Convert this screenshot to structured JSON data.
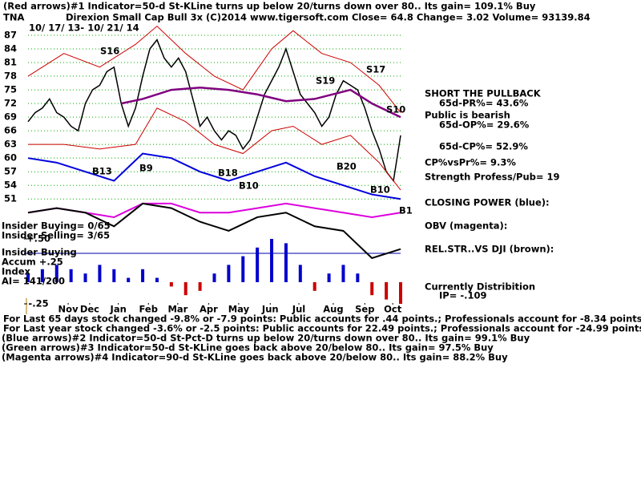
{
  "chart_data": {
    "type": "line",
    "ticker": "TNA",
    "title": "Direxion Small Cap Bull 3x     (C)2014 www.tigersoft.com    Close=  64.8  Change= 3.02 Volume= 93139.84",
    "header": "(Red arrows)#1 Indicator=50-d St-KLine turns up below 20/turns down over 80.. Its gain= 109.1% Buy",
    "date_range": "10/ 17/ 13- 10/ 21/ 14",
    "xlim": [
      0,
      52
    ],
    "xticks": [
      {
        "value": 5.6,
        "label": "Nov"
      },
      {
        "value": 8.6,
        "label": "Dec"
      },
      {
        "value": 12.6,
        "label": "Jan"
      },
      {
        "value": 16.8,
        "label": "Feb"
      },
      {
        "value": 20.9,
        "label": "Mar"
      },
      {
        "value": 25.2,
        "label": "Apr"
      },
      {
        "value": 29.4,
        "label": "May"
      },
      {
        "value": 33.8,
        "label": "Jun"
      },
      {
        "value": 37.8,
        "label": "Jul"
      },
      {
        "value": 42.6,
        "label": "Aug"
      },
      {
        "value": 47,
        "label": "Sep"
      },
      {
        "value": 50.9,
        "label": "Oct"
      }
    ],
    "ylim": [
      38,
      87
    ],
    "yticks": [
      87,
      84,
      81,
      78,
      75,
      72,
      69,
      66,
      63,
      60,
      57,
      54,
      51
    ],
    "y2lim": [
      -0.25,
      0.5
    ],
    "y2ticks": [
      {
        "value": 0.5,
        "label": "+.50"
      },
      {
        "value": -0.25,
        "label": "-.25"
      }
    ],
    "grid": true,
    "series": [
      {
        "name": "Price",
        "color": "#000000",
        "x": [
          0,
          1,
          2,
          3,
          4,
          5,
          6,
          7,
          8,
          9,
          10,
          11,
          12,
          13,
          14,
          15,
          16,
          17,
          18,
          19,
          20,
          21,
          22,
          23,
          24,
          25,
          26,
          27,
          28,
          29,
          30,
          31,
          32,
          33,
          34,
          35,
          36,
          37,
          38,
          39,
          40,
          41,
          42,
          43,
          44,
          45,
          46,
          47,
          48,
          49,
          50,
          51,
          52
        ],
        "values": [
          68,
          70,
          71,
          73,
          70,
          69,
          67,
          66,
          72,
          75,
          76,
          79,
          80,
          72,
          67,
          71,
          78,
          84,
          86,
          82,
          80,
          82,
          79,
          73,
          67,
          69,
          66,
          64,
          66,
          65,
          62,
          64,
          69,
          74,
          77,
          80,
          84,
          79,
          74,
          72,
          70,
          67,
          69,
          74,
          77,
          76,
          75,
          71,
          66,
          62,
          57,
          55,
          65
        ]
      },
      {
        "name": "Upper band",
        "color": "#cc0000",
        "x": [
          0,
          5,
          10,
          15,
          18,
          22,
          26,
          30,
          34,
          37,
          41,
          45,
          49,
          52
        ],
        "values": [
          78,
          83,
          80,
          85,
          89,
          83,
          78,
          75,
          84,
          88,
          83,
          81,
          76,
          70
        ]
      },
      {
        "name": "Lower band",
        "color": "#cc0000",
        "x": [
          0,
          5,
          10,
          15,
          18,
          22,
          26,
          30,
          34,
          37,
          41,
          45,
          49,
          52
        ],
        "values": [
          63,
          63,
          62,
          63,
          71,
          68,
          63,
          61,
          66,
          67,
          63,
          65,
          59,
          53
        ]
      },
      {
        "name": "Moving average",
        "color": "#800080",
        "x": [
          13,
          16,
          20,
          24,
          28,
          32,
          36,
          40,
          45,
          48,
          52
        ],
        "values": [
          72,
          73,
          75,
          75.5,
          75,
          74,
          72.5,
          73,
          75,
          72,
          69
        ]
      },
      {
        "name": "CLOSING POWER (blue):",
        "color": "#0000dd",
        "x": [
          0,
          4,
          8,
          12,
          14,
          16,
          20,
          24,
          28,
          32,
          36,
          40,
          44,
          48,
          52
        ],
        "values": [
          60,
          59,
          57,
          55,
          58,
          61,
          60,
          57,
          55,
          57,
          59,
          56,
          54,
          52,
          51
        ]
      },
      {
        "name": "OBV (magenta):",
        "color": "#dd00dd",
        "x": [
          0,
          4,
          8,
          12,
          16,
          20,
          24,
          28,
          32,
          36,
          40,
          44,
          48,
          52
        ],
        "values": [
          48,
          49,
          48,
          47,
          50,
          50,
          48,
          48,
          49,
          50,
          49,
          48,
          47,
          48
        ]
      },
      {
        "name": "REL.STR..VS DJI (brown):",
        "color": "#000000",
        "x": [
          0,
          4,
          8,
          12,
          16,
          20,
          24,
          28,
          32,
          36,
          40,
          44,
          48,
          52
        ],
        "values": [
          48,
          49,
          48,
          45,
          50,
          49,
          46,
          44,
          47,
          48,
          45,
          44,
          38,
          40
        ]
      },
      {
        "name": "Accum Index",
        "axis": "y2",
        "color": "#0000cc",
        "negative_color": "#cc0000",
        "x": [
          0,
          2,
          4,
          6,
          8,
          10,
          12,
          14,
          16,
          18,
          20,
          22,
          24,
          26,
          28,
          30,
          32,
          34,
          36,
          38,
          40,
          42,
          44,
          46,
          48,
          50,
          52
        ],
        "values": [
          0.1,
          0.15,
          0.2,
          0.15,
          0.1,
          0.2,
          0.15,
          0.05,
          0.15,
          0.05,
          -0.05,
          -0.15,
          -0.1,
          0.1,
          0.2,
          0.3,
          0.4,
          0.5,
          0.45,
          0.2,
          -0.1,
          0.1,
          0.2,
          0.1,
          -0.15,
          -0.2,
          -0.25
        ]
      }
    ],
    "signals": [
      "S16",
      "S19",
      "S17",
      "S10",
      "B13",
      "B9",
      "B18",
      "B10",
      "B20",
      "B10",
      "B1"
    ],
    "panel_labels": [
      "Insider Buying= 0/65",
      "Insider Selling= 3/65",
      "Insider Buying",
      "Accum  +.25",
      "Index",
      "AI= 141/200"
    ],
    "side_notes": [
      "SHORT THE PULLBACK",
      "65d-PR%= 43.6%",
      "Public is bearish",
      "65d-OP%= 29.6%",
      "65d-CP%= 52.9%",
      "CP%vsPr%=  9.3%",
      "Strength Profess/Pub= 19",
      "Currently Distribition",
      "IP= -.109"
    ],
    "footer": [
      "For Last 65 days stock changed -9.8% or -7.9 points:  Public accounts for  .44 points.;  Professionals account for -8.34 points.",
      "For Last year stock changed -3.6% or -2.5 points:  Public accounts for  22.49 points.;  Professionals account for -24.99 points.",
      "(Blue arrows)#2 Indicator=50-d St-Pct-D turns up below 20/turns down over 80.. Its gain= 99.1% Buy",
      "(Green arrows)#3 Indicator=50-d St-KLine goes back above 20/below 80.. Its gain= 97.5% Buy",
      "(Magenta arrows)#4 Indicator=90-d St-KLine goes back above 20/below 80.. Its gain= 88.2% Buy"
    ]
  }
}
